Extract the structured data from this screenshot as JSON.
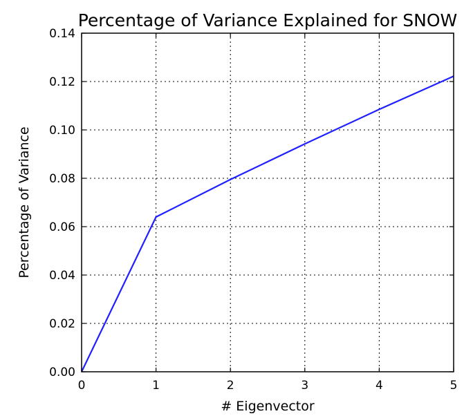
{
  "chart_data": {
    "type": "line",
    "title": "Percentage of Variance Explained for SNOW",
    "xlabel": "# Eigenvector",
    "ylabel": "Percentage of Variance",
    "xlim": [
      0,
      5
    ],
    "ylim": [
      0,
      0.14
    ],
    "x_ticks": [
      "0",
      "1",
      "2",
      "3",
      "4",
      "5"
    ],
    "y_ticks": [
      "0.00",
      "0.02",
      "0.04",
      "0.06",
      "0.08",
      "0.10",
      "0.12",
      "0.14"
    ],
    "grid": true,
    "series": [
      {
        "color": "#1f1fff",
        "x": [
          0,
          1,
          2,
          3,
          4,
          5
        ],
        "values": [
          0.0,
          0.064,
          0.0795,
          0.0942,
          0.1085,
          0.1222
        ]
      }
    ]
  }
}
